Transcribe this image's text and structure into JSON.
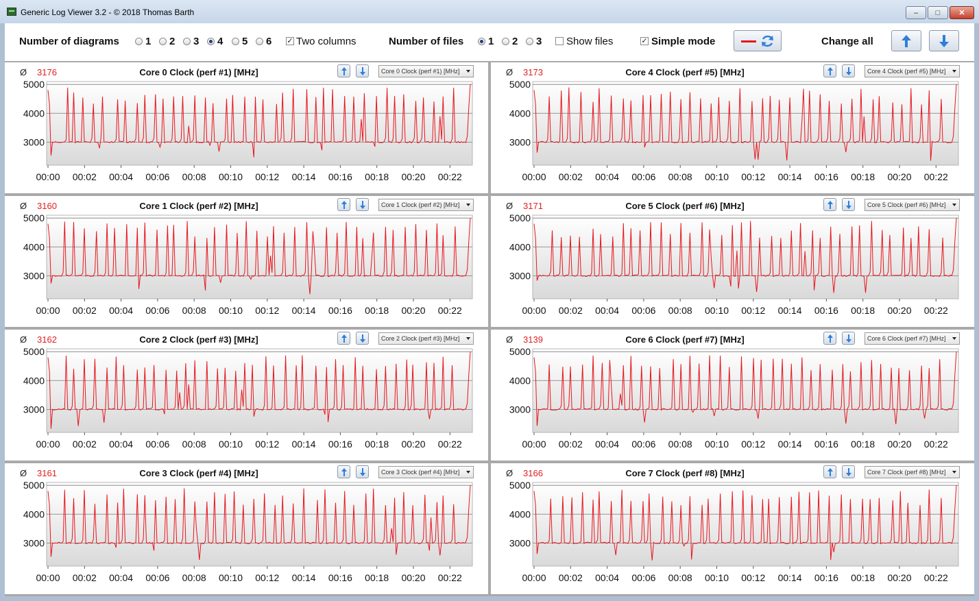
{
  "window": {
    "title": "Generic Log Viewer 3.2 - © 2018 Thomas Barth",
    "min_label": "–",
    "max_label": "□",
    "close_label": "✕"
  },
  "toolbar": {
    "diagrams_label": "Number of diagrams",
    "diagram_options": [
      "1",
      "2",
      "3",
      "4",
      "5",
      "6"
    ],
    "diagram_selected": "4",
    "two_columns_label": "Two columns",
    "two_columns_checked": true,
    "files_label": "Number of files",
    "file_options": [
      "1",
      "2",
      "3"
    ],
    "file_selected": "1",
    "show_files_label": "Show files",
    "show_files_checked": false,
    "simple_mode_label": "Simple mode",
    "simple_mode_checked": true,
    "change_all_label": "Change all",
    "accent_red": "#e8131b",
    "accent_blue": "#2f7fd8"
  },
  "panels": [
    {
      "avg_symbol": "Ø",
      "avg": "3176",
      "title": "Core 0 Clock (perf #1) [MHz]",
      "selector": "Core 0 Clock (perf #1) [MHz]"
    },
    {
      "avg_symbol": "Ø",
      "avg": "3173",
      "title": "Core 4 Clock (perf #5) [MHz]",
      "selector": "Core 4 Clock (perf #5) [MHz]"
    },
    {
      "avg_symbol": "Ø",
      "avg": "3160",
      "title": "Core 1 Clock (perf #2) [MHz]",
      "selector": "Core 1 Clock (perf #2) [MHz]"
    },
    {
      "avg_symbol": "Ø",
      "avg": "3171",
      "title": "Core 5 Clock (perf #6) [MHz]",
      "selector": "Core 5 Clock (perf #6) [MHz]"
    },
    {
      "avg_symbol": "Ø",
      "avg": "3162",
      "title": "Core 2 Clock (perf #3) [MHz]",
      "selector": "Core 2 Clock (perf #3) [MHz]"
    },
    {
      "avg_symbol": "Ø",
      "avg": "3139",
      "title": "Core 6 Clock (perf #7) [MHz]",
      "selector": "Core 6 Clock (perf #7) [MHz]"
    },
    {
      "avg_symbol": "Ø",
      "avg": "3161",
      "title": "Core 3 Clock (perf #4) [MHz]",
      "selector": "Core 3 Clock (perf #4) [MHz]"
    },
    {
      "avg_symbol": "Ø",
      "avg": "3166",
      "title": "Core 7 Clock (perf #8) [MHz]",
      "selector": "Core 7 Clock (perf #8) [MHz]"
    }
  ],
  "chart_data": {
    "type": "line",
    "series_color": "#e8131b",
    "grid": true,
    "ylim": [
      2200,
      5100
    ],
    "y_ticks": [
      "5000",
      "4000",
      "3000"
    ],
    "x_ticks": [
      "00:00",
      "00:02",
      "00:04",
      "00:06",
      "00:08",
      "00:10",
      "00:12",
      "00:14",
      "00:16",
      "00:18",
      "00:20",
      "00:22"
    ],
    "baseline_mhz": 3000,
    "spike_count_approx": 40,
    "peaks_mhz_approx": [
      4300,
      4900
    ],
    "start_value_mhz": 4800,
    "end_value_mhz": 5000
  }
}
